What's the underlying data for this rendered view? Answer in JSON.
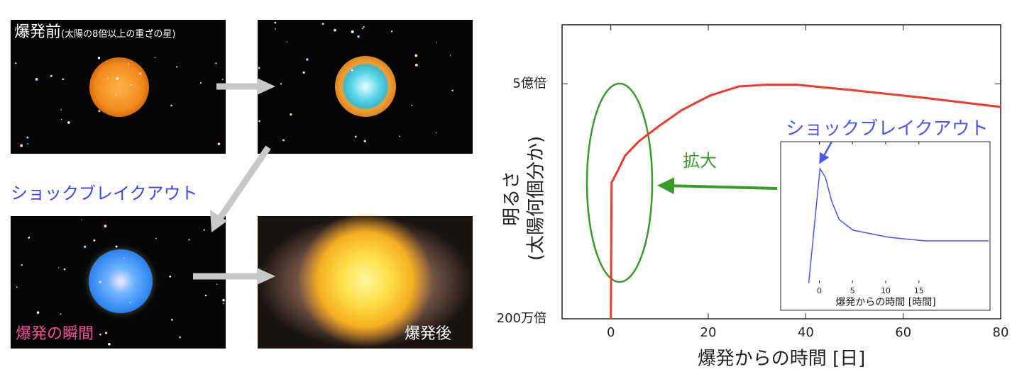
{
  "panels": [
    {
      "label": "爆発前",
      "sublabel": "(太陽の8倍以上の重さの星)"
    },
    {
      "label": "ショックブレイクアウト"
    },
    {
      "label": "爆発の瞬間"
    },
    {
      "label": "爆発後"
    }
  ],
  "chart_data": [
    {
      "type": "line",
      "xlabel": "爆発からの時間 [日]",
      "ylabel": [
        "明るさ",
        "(太陽何個分か)"
      ],
      "x": [
        0,
        0,
        0.15,
        1.5,
        2.9,
        5.8,
        10.2,
        14.6,
        20.4,
        26.3,
        32.1,
        38,
        49.6,
        64.2,
        80
      ],
      "values": [
        2000000,
        2000000,
        49000000,
        66000000,
        92000000,
        130000000,
        190000000,
        270000000,
        380000000,
        470000000,
        490000000,
        490000000,
        430000000,
        360000000,
        290000000
      ],
      "color": "#f03a2e",
      "xlim": [
        -10,
        80
      ],
      "xticks": [
        0,
        20,
        40,
        60,
        80
      ],
      "ylim": [
        2000000,
        2000000000
      ],
      "yticks": [
        {
          "value": 2000000,
          "label": "200万倍"
        },
        {
          "value": 500000000,
          "label": "5億倍"
        }
      ],
      "log_y": true,
      "annotations": [
        "拡大",
        "ショックブレイクアウト"
      ]
    },
    {
      "type": "line",
      "xlabel": "爆発からの時間 [時間]",
      "x": [
        -1.6,
        0.1,
        0.9,
        1.9,
        3.0,
        5.1,
        10.5,
        15.9,
        25.5
      ],
      "values": [
        0,
        81,
        75,
        57.5,
        45,
        37.5,
        32.5,
        30,
        30
      ],
      "color": "#4b55f0",
      "xlim": [
        -5.5,
        25.5
      ],
      "xticks": [
        0,
        5,
        10,
        15
      ],
      "ylim": [
        0,
        100
      ]
    }
  ]
}
